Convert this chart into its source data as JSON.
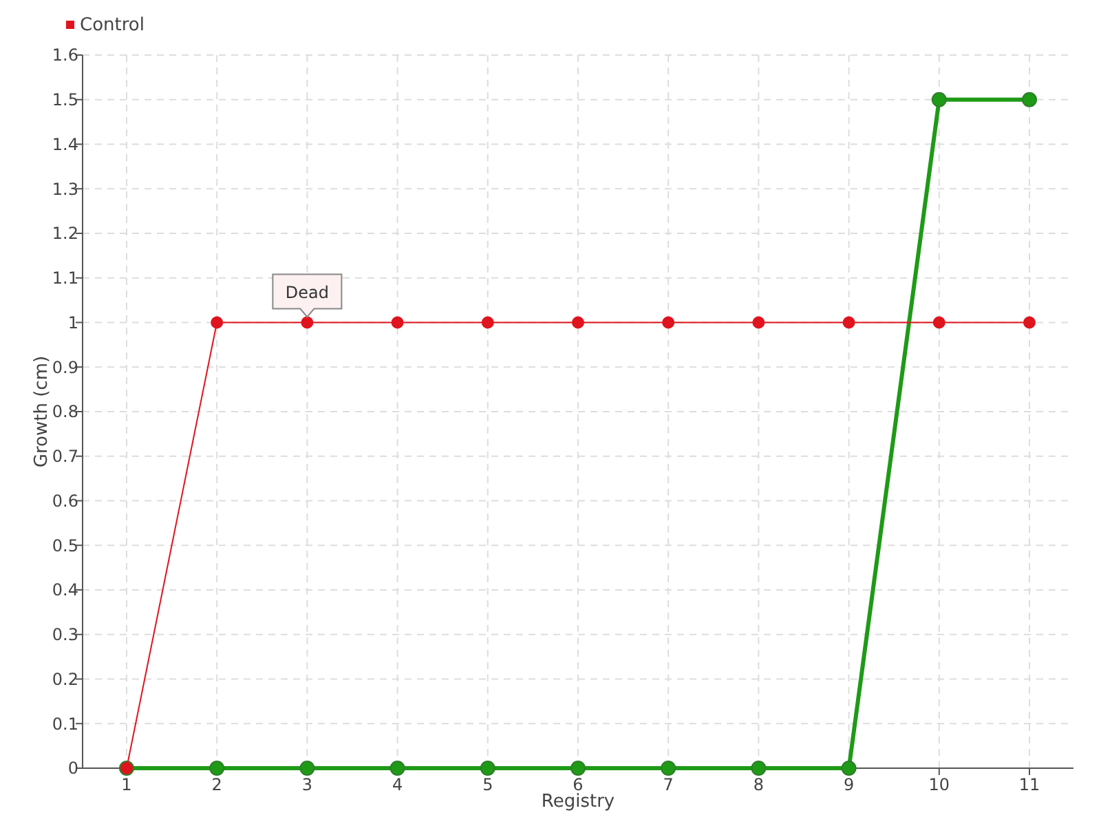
{
  "chart_data": {
    "type": "line",
    "xlabel": "Registry",
    "ylabel": "Growth (cm)",
    "categories": [
      "1",
      "2",
      "3",
      "4",
      "5",
      "6",
      "7",
      "8",
      "9",
      "10",
      "11"
    ],
    "series": [
      {
        "color": "#1f9a17",
        "values": [
          0,
          0,
          0,
          0,
          0,
          0,
          0,
          0,
          0,
          1.5,
          1.5
        ]
      },
      {
        "name": "Control",
        "color": "#e0141e",
        "values": [
          0,
          1,
          1,
          1,
          1,
          1,
          1,
          1,
          1,
          1,
          1
        ]
      }
    ],
    "ylim": [
      0,
      1.6
    ],
    "yticks": [
      0,
      0.1,
      0.2,
      0.3,
      0.4,
      0.5,
      0.6,
      0.7,
      0.8,
      0.9,
      1,
      1.1,
      1.2,
      1.3,
      1.4,
      1.5,
      1.6
    ],
    "annotations": [
      {
        "text": "Dead",
        "x": "3",
        "y": 1
      }
    ],
    "grid": true,
    "legend": "top left",
    "marker": "circle"
  }
}
